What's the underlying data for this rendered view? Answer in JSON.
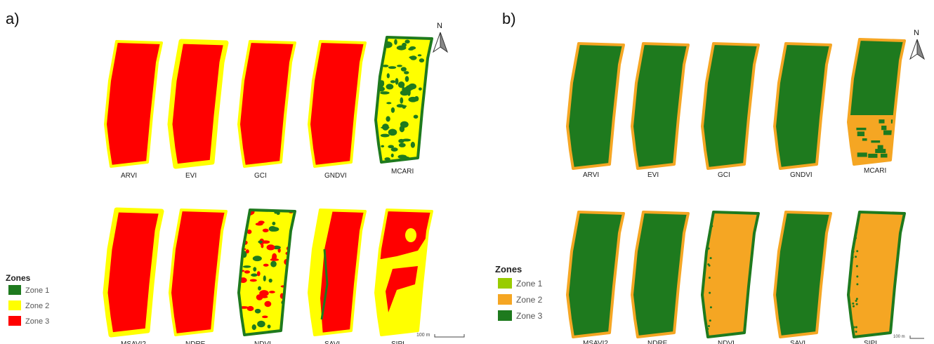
{
  "panels": [
    {
      "id": "a",
      "label": "a)",
      "north": "N",
      "legend": {
        "title": "Zones",
        "items": [
          {
            "label": "Zone 1",
            "color": "#1e7a1e"
          },
          {
            "label": "Zone 2",
            "color": "#ffff00"
          },
          {
            "label": "Zone 3",
            "color": "#ff0000"
          }
        ]
      },
      "scale_label": "100 m",
      "top_row": [
        {
          "name": "ARVI",
          "fill": "#ff0000",
          "edge": "#ffff00",
          "pattern": "edge"
        },
        {
          "name": "EVI",
          "fill": "#ff0000",
          "edge": "#ffff00",
          "pattern": "edge-heavy"
        },
        {
          "name": "GCI",
          "fill": "#ff0000",
          "edge": "#ffff00",
          "pattern": "edge"
        },
        {
          "name": "GNDVI",
          "fill": "#ff0000",
          "edge": "#ffff00",
          "pattern": "edge"
        },
        {
          "name": "MCARI",
          "fill": "#ffff00",
          "edge": "#1e7a1e",
          "pattern": "spots-green"
        }
      ],
      "bottom_row": [
        {
          "name": "MSAVI2",
          "fill": "#ff0000",
          "edge": "#ffff00",
          "pattern": "edge-heavy"
        },
        {
          "name": "NDRE",
          "fill": "#ff0000",
          "edge": "#ffff00",
          "pattern": "edge"
        },
        {
          "name": "NDVI",
          "fill": "#ffff00",
          "edge": "#1e7a1e",
          "pattern": "spots-red"
        },
        {
          "name": "SAVI",
          "fill": "#ff0000",
          "edge": "#ffff00",
          "pattern": "yellow-left"
        },
        {
          "name": "SIPI",
          "fill": "#ffff00",
          "edge": "#ffff00",
          "pattern": "red-top"
        }
      ]
    },
    {
      "id": "b",
      "label": "b)",
      "north": "N",
      "legend": {
        "title": "Zones",
        "items": [
          {
            "label": "Zone 1",
            "color": "#99cc00"
          },
          {
            "label": "Zone 2",
            "color": "#f5a623"
          },
          {
            "label": "Zone 3",
            "color": "#1e7a1e"
          }
        ]
      },
      "scale_label": "100 m",
      "top_row": [
        {
          "name": "ARVI",
          "fill": "#1e7a1e",
          "edge": "#f5a623",
          "pattern": "edge"
        },
        {
          "name": "EVI",
          "fill": "#1e7a1e",
          "edge": "#f5a623",
          "pattern": "edge"
        },
        {
          "name": "GCI",
          "fill": "#1e7a1e",
          "edge": "#f5a623",
          "pattern": "edge"
        },
        {
          "name": "GNDVI",
          "fill": "#1e7a1e",
          "edge": "#f5a623",
          "pattern": "edge"
        },
        {
          "name": "MCARI",
          "fill": "#1e7a1e",
          "edge": "#f5a623",
          "pattern": "orange-bottom"
        }
      ],
      "bottom_row": [
        {
          "name": "MSAVI2",
          "fill": "#1e7a1e",
          "edge": "#f5a623",
          "pattern": "edge"
        },
        {
          "name": "NDRE",
          "fill": "#1e7a1e",
          "edge": "#f5a623",
          "pattern": "edge"
        },
        {
          "name": "NDVI",
          "fill": "#f5a623",
          "edge": "#1e7a1e",
          "pattern": "edge-dots"
        },
        {
          "name": "SAVI",
          "fill": "#1e7a1e",
          "edge": "#f5a623",
          "pattern": "edge"
        },
        {
          "name": "SIPI",
          "fill": "#f5a623",
          "edge": "#1e7a1e",
          "pattern": "edge-dots"
        }
      ]
    }
  ]
}
